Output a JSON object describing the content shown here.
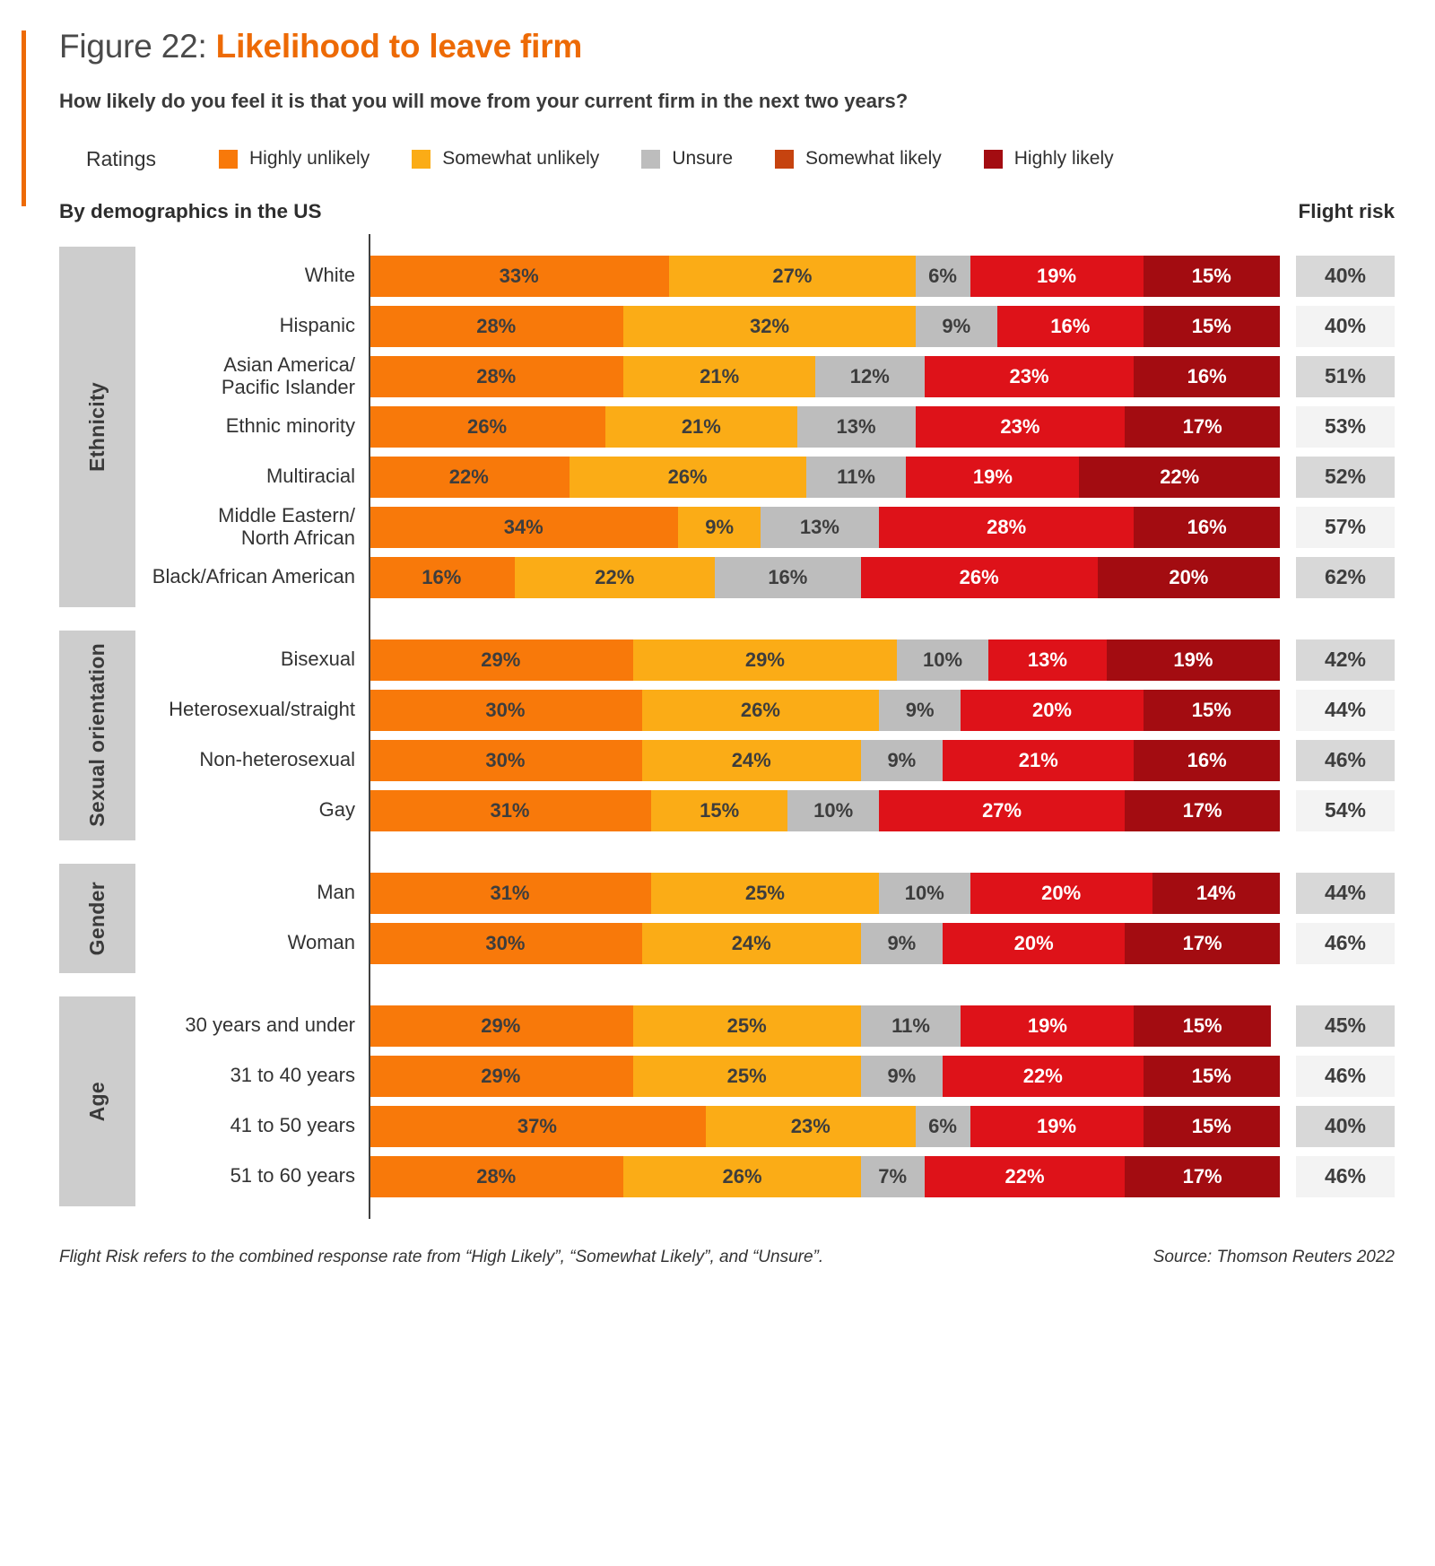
{
  "header": {
    "figure_label": "Figure 22: ",
    "title": "Likelihood to leave firm",
    "question": "How likely do you feel it is that you will move from your current firm in the next two years?"
  },
  "legend": {
    "label": "Ratings",
    "items": [
      {
        "key": "highly_unlikely",
        "label": "Highly unlikely"
      },
      {
        "key": "somewhat_unlikely",
        "label": "Somewhat unlikely"
      },
      {
        "key": "unsure",
        "label": "Unsure"
      },
      {
        "key": "somewhat_likely",
        "label": "Somewhat likely"
      },
      {
        "key": "highly_likely",
        "label": "Highly likely"
      }
    ]
  },
  "sections": {
    "left": "By demographics in the US",
    "right": "Flight risk"
  },
  "colors": {
    "accent_orange": "#ED6A05",
    "ratings": {
      "highly_unlikely": "#F8790A",
      "somewhat_unlikely": "#FBAC16",
      "unsure": "#BDBDBD",
      "somewhat_likely": "#DE1219",
      "highly_likely": "#A30C11"
    },
    "legend_swatch_overrides": {
      "somewhat_likely": "#C6430F"
    },
    "segment_text_dark": "#3d3d3d",
    "segment_text_light": "#ffffff",
    "flight_cell_dark": "#D8D8D8",
    "flight_cell_light": "#F3F3F3",
    "group_block": "#CDCDCD"
  },
  "chart_data": {
    "type": "bar",
    "orientation": "horizontal",
    "stacked": true,
    "value_format": "percent",
    "x_range": [
      0,
      100
    ],
    "series_order": [
      "highly_unlikely",
      "somewhat_unlikely",
      "unsure",
      "somewhat_likely",
      "highly_likely"
    ],
    "series_labels": [
      "Highly unlikely",
      "Somewhat unlikely",
      "Unsure",
      "Somewhat likely",
      "Highly likely"
    ],
    "flight_risk_note": "Flight risk column = Highly likely + Somewhat likely + Unsure",
    "groups": [
      {
        "label": "Ethnicity",
        "rows": [
          {
            "label": "White",
            "values": [
              33,
              27,
              6,
              19,
              15
            ],
            "flight_risk": 40
          },
          {
            "label": "Hispanic",
            "values": [
              28,
              32,
              9,
              16,
              15
            ],
            "flight_risk": 40
          },
          {
            "label": "Asian America/\nPacific Islander",
            "values": [
              28,
              21,
              12,
              23,
              16
            ],
            "flight_risk": 51
          },
          {
            "label": "Ethnic minority",
            "values": [
              26,
              21,
              13,
              23,
              17
            ],
            "flight_risk": 53
          },
          {
            "label": "Multiracial",
            "values": [
              22,
              26,
              11,
              19,
              22
            ],
            "flight_risk": 52
          },
          {
            "label": "Middle Eastern/\nNorth African",
            "values": [
              34,
              9,
              13,
              28,
              16
            ],
            "flight_risk": 57
          },
          {
            "label": "Black/African American",
            "values": [
              16,
              22,
              16,
              26,
              20
            ],
            "flight_risk": 62
          }
        ]
      },
      {
        "label": "Sexual orientation",
        "rows": [
          {
            "label": "Bisexual",
            "values": [
              29,
              29,
              10,
              13,
              19
            ],
            "flight_risk": 42
          },
          {
            "label": "Heterosexual/straight",
            "values": [
              30,
              26,
              9,
              20,
              15
            ],
            "flight_risk": 44
          },
          {
            "label": "Non-heterosexual",
            "values": [
              30,
              24,
              9,
              21,
              16
            ],
            "flight_risk": 46
          },
          {
            "label": "Gay",
            "values": [
              31,
              15,
              10,
              27,
              17
            ],
            "flight_risk": 54
          }
        ]
      },
      {
        "label": "Gender",
        "rows": [
          {
            "label": "Man",
            "values": [
              31,
              25,
              10,
              20,
              14
            ],
            "flight_risk": 44
          },
          {
            "label": "Woman",
            "values": [
              30,
              24,
              9,
              20,
              17
            ],
            "flight_risk": 46
          }
        ]
      },
      {
        "label": "Age",
        "rows": [
          {
            "label": "30 years and under",
            "values": [
              29,
              25,
              11,
              19,
              15
            ],
            "flight_risk": 45
          },
          {
            "label": "31 to 40 years",
            "values": [
              29,
              25,
              9,
              22,
              15
            ],
            "flight_risk": 46
          },
          {
            "label": "41 to 50 years",
            "values": [
              37,
              23,
              6,
              19,
              15
            ],
            "flight_risk": 40
          },
          {
            "label": "51 to 60 years",
            "values": [
              28,
              26,
              7,
              22,
              17
            ],
            "flight_risk": 46
          }
        ]
      }
    ]
  },
  "footer": {
    "note": "Flight Risk refers to the combined response rate from “High Likely”, “Somewhat Likely”, and “Unsure”.",
    "source": "Source: Thomson Reuters 2022"
  }
}
